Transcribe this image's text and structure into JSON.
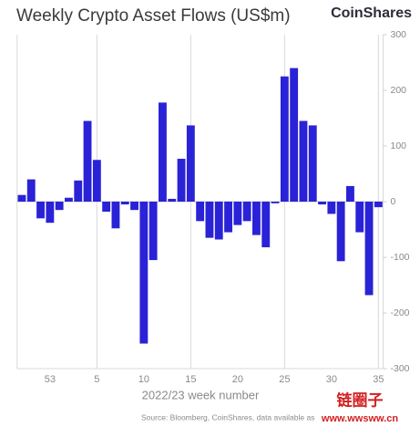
{
  "chart_data": {
    "type": "bar",
    "title": "Weekly Crypto Asset Flows (US$m)",
    "brand": "CoinShares",
    "x_label": "2022/23 week number",
    "source": "Source: Bloomberg, CoinShares, data available as",
    "watermark": "链圈子",
    "watermark_url": "www.wwsww.cn",
    "categories": [
      null,
      null,
      null,
      "53",
      null,
      null,
      null,
      null,
      "5",
      null,
      null,
      null,
      null,
      "10",
      null,
      null,
      null,
      null,
      "15",
      null,
      null,
      null,
      null,
      "20",
      null,
      null,
      null,
      null,
      "25",
      null,
      null,
      null,
      null,
      "30",
      null,
      null,
      null,
      null,
      "35"
    ],
    "values": [
      12,
      40,
      -30,
      -38,
      -15,
      7,
      38,
      145,
      75,
      -18,
      -48,
      -5,
      -15,
      -255,
      -105,
      178,
      5,
      77,
      137,
      -35,
      -65,
      -68,
      -55,
      -42,
      -35,
      -60,
      -82,
      -3,
      225,
      240,
      145,
      137,
      -5,
      -22,
      -107,
      28,
      -55,
      -168,
      -10
    ],
    "color": "#2a22d6",
    "ylim": [
      -300,
      300
    ],
    "yticks": [
      300,
      200,
      100,
      0,
      -100,
      -200,
      -300
    ],
    "axis_side": "right"
  }
}
